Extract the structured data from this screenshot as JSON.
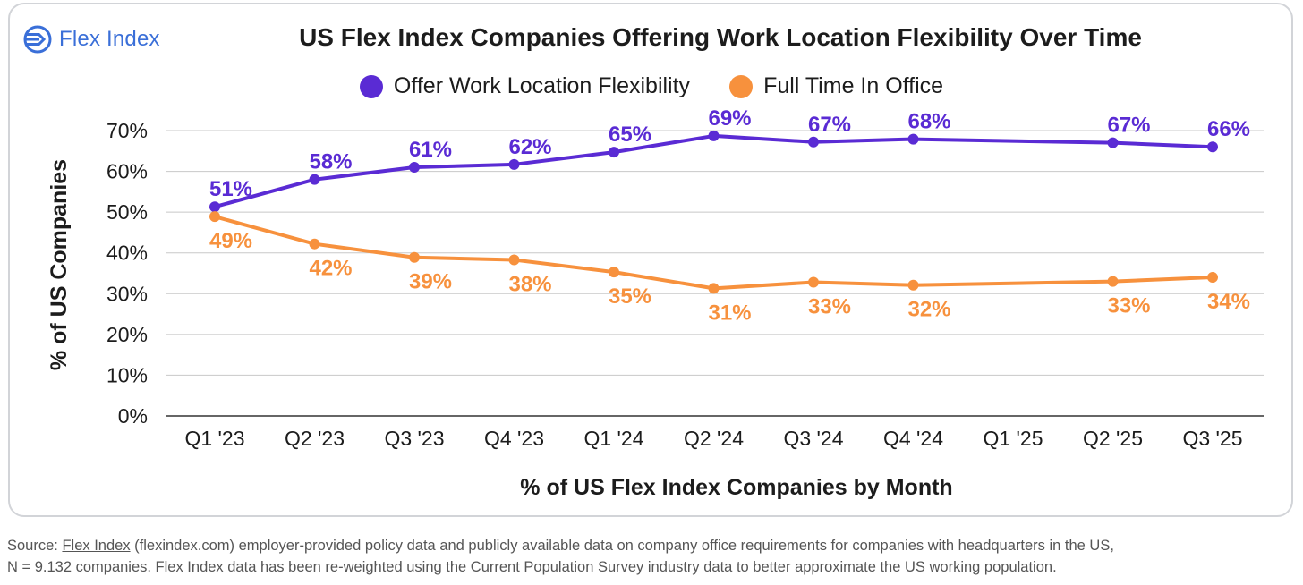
{
  "logo": {
    "text": "Flex Index"
  },
  "title": "US Flex Index Companies Offering Work Location Flexibility Over Time",
  "colors": {
    "flex": "#5a2bd4",
    "office": "#f7913d",
    "grid": "#c8c8c8",
    "axis": "#333333"
  },
  "chart_data": {
    "type": "line",
    "title": "US Flex Index Companies Offering Work Location Flexibility Over Time",
    "xlabel": "% of US Flex Index Companies by Month",
    "ylabel": "% of US Companies",
    "categories": [
      "Q1 '23",
      "Q2 '23",
      "Q3 '23",
      "Q4 '23",
      "Q1 '24",
      "Q2 '24",
      "Q3 '24",
      "Q4 '24",
      "Q1 '25",
      "Q2 '25",
      "Q3 '25"
    ],
    "yticks": [
      "0%",
      "10%",
      "20%",
      "30%",
      "40%",
      "50%",
      "60%",
      "70%"
    ],
    "ylim": [
      0,
      70
    ],
    "legend": "top-center",
    "grid": true,
    "series": [
      {
        "name": "Offer Work Location Flexibility",
        "color": "#5a2bd4",
        "points": [
          {
            "x": "Q1 '23",
            "y": 51.3,
            "label": "51%"
          },
          {
            "x": "Q2 '23",
            "y": 58.0,
            "label": "58%"
          },
          {
            "x": "Q3 '23",
            "y": 61.0,
            "label": "61%"
          },
          {
            "x": "Q4 '23",
            "y": 61.7,
            "label": "62%"
          },
          {
            "x": "Q1 '24",
            "y": 64.7,
            "label": "65%"
          },
          {
            "x": "Q2 '24",
            "y": 68.7,
            "label": "69%"
          },
          {
            "x": "Q3 '24",
            "y": 67.2,
            "label": "67%"
          },
          {
            "x": "Q4 '24",
            "y": 67.9,
            "label": "68%"
          },
          {
            "x": "Q2 '25",
            "y": 67.0,
            "label": "67%"
          },
          {
            "x": "Q3 '25",
            "y": 66.0,
            "label": "66%"
          }
        ]
      },
      {
        "name": "Full Time In Office",
        "color": "#f7913d",
        "points": [
          {
            "x": "Q1 '23",
            "y": 48.9,
            "label": "49%"
          },
          {
            "x": "Q2 '23",
            "y": 42.2,
            "label": "42%"
          },
          {
            "x": "Q3 '23",
            "y": 38.9,
            "label": "39%"
          },
          {
            "x": "Q4 '23",
            "y": 38.3,
            "label": "38%"
          },
          {
            "x": "Q1 '24",
            "y": 35.3,
            "label": "35%"
          },
          {
            "x": "Q2 '24",
            "y": 31.3,
            "label": "31%"
          },
          {
            "x": "Q3 '24",
            "y": 32.8,
            "label": "33%"
          },
          {
            "x": "Q4 '24",
            "y": 32.1,
            "label": "32%"
          },
          {
            "x": "Q2 '25",
            "y": 33.0,
            "label": "33%"
          },
          {
            "x": "Q3 '25",
            "y": 34.0,
            "label": "34%"
          }
        ]
      }
    ]
  },
  "source": {
    "prefix": "Source: ",
    "link_text": "Flex Index",
    "line1_rest": " (flexindex.com) employer-provided policy data and publicly available data on company office requirements for companies with headquarters in the US,",
    "line2": "N = 9.132 companies. Flex Index data has been re-weighted using the Current Population Survey industry data to better approximate the US working population."
  }
}
